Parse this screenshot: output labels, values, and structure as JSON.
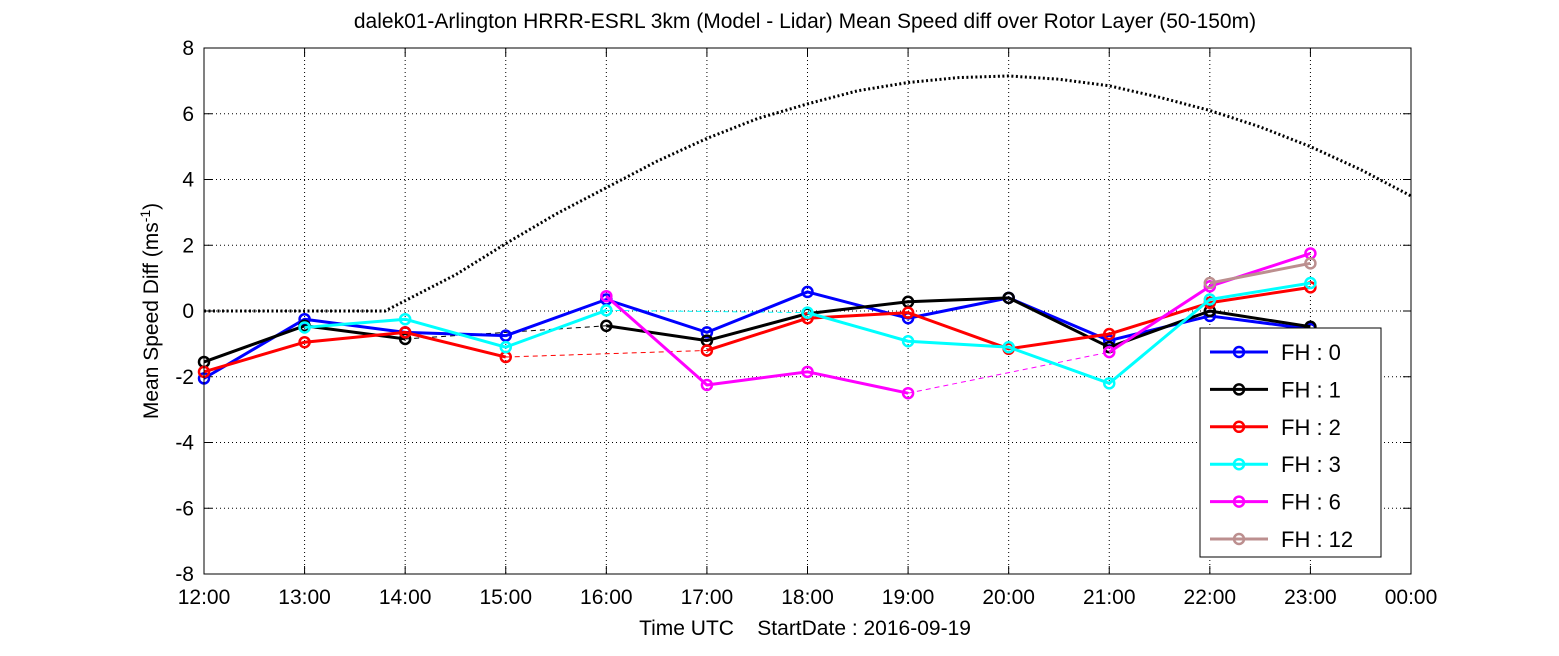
{
  "chart_data": {
    "type": "line",
    "title": "dalek01-Arlington HRRR-ESRL 3km (Model - Lidar) Mean Speed diff over Rotor Layer (50-150m)",
    "xlabel_left": "Time UTC",
    "xlabel_right": "StartDate : 2016-09-19",
    "ylabel_main": "Mean Speed Diff (ms",
    "ylabel_sup": "-1",
    "ylabel_end": ")",
    "ylim": [
      -8,
      8
    ],
    "yticks": [
      -8,
      -6,
      -4,
      -2,
      0,
      2,
      4,
      6,
      8
    ],
    "xlim": [
      12,
      24
    ],
    "xticks": [
      12,
      13,
      14,
      15,
      16,
      17,
      18,
      19,
      20,
      21,
      22,
      23,
      24
    ],
    "xtick_labels": [
      "12:00",
      "13:00",
      "14:00",
      "15:00",
      "16:00",
      "17:00",
      "18:00",
      "19:00",
      "20:00",
      "21:00",
      "22:00",
      "23:00",
      "00:00"
    ],
    "grid": true,
    "legend_position": "bottom-right",
    "series": [
      {
        "name": "FH : 0",
        "color": "#0000ff",
        "points": [
          [
            12,
            -2.05
          ],
          [
            13,
            -0.25
          ],
          [
            14,
            -0.65
          ],
          [
            15,
            -0.75
          ],
          [
            16,
            0.35
          ],
          [
            17,
            -0.65
          ],
          [
            18,
            0.58
          ],
          [
            19,
            -0.22
          ],
          [
            20,
            0.4
          ],
          [
            21,
            -0.9
          ],
          [
            22,
            -0.15
          ],
          [
            23,
            -0.55
          ]
        ]
      },
      {
        "name": "FH : 1",
        "color": "#000000",
        "points": [
          [
            12,
            -1.55
          ],
          [
            13,
            -0.45
          ],
          [
            14,
            -0.85
          ],
          [
            16,
            -0.45
          ],
          [
            17,
            -0.9
          ],
          [
            18,
            -0.08
          ],
          [
            19,
            0.28
          ],
          [
            20,
            0.4
          ],
          [
            21,
            -1.1
          ],
          [
            22,
            0.0
          ],
          [
            23,
            -0.48
          ]
        ]
      },
      {
        "name": "FH : 2",
        "color": "#ff0000",
        "points": [
          [
            12,
            -1.85
          ],
          [
            13,
            -0.95
          ],
          [
            14,
            -0.65
          ],
          [
            15,
            -1.4
          ],
          [
            17,
            -1.2
          ],
          [
            18,
            -0.22
          ],
          [
            19,
            -0.05
          ],
          [
            20,
            -1.15
          ],
          [
            21,
            -0.7
          ],
          [
            22,
            0.25
          ],
          [
            23,
            0.72
          ]
        ]
      },
      {
        "name": "FH : 3",
        "color": "#00ffff",
        "points": [
          [
            13,
            -0.5
          ],
          [
            14,
            -0.25
          ],
          [
            15,
            -1.1
          ],
          [
            16,
            0.02
          ],
          [
            18,
            -0.05
          ],
          [
            19,
            -0.92
          ],
          [
            20,
            -1.1
          ],
          [
            21,
            -2.2
          ],
          [
            22,
            0.35
          ],
          [
            23,
            0.85
          ]
        ]
      },
      {
        "name": "FH : 6",
        "color": "#ff00ff",
        "points": [
          [
            16,
            0.45
          ],
          [
            17,
            -2.25
          ],
          [
            18,
            -1.85
          ],
          [
            19,
            -2.5
          ],
          [
            21,
            -1.25
          ],
          [
            22,
            0.75
          ],
          [
            23,
            1.75
          ]
        ]
      },
      {
        "name": "FH : 12",
        "color": "#bc8f8f",
        "points": [
          [
            22,
            0.85
          ],
          [
            23,
            1.45
          ]
        ]
      }
    ],
    "reference_curve": {
      "color": "#000000",
      "points": [
        [
          12,
          0
        ],
        [
          13,
          0
        ],
        [
          13.8,
          0
        ],
        [
          14.5,
          1.1
        ],
        [
          15,
          2.05
        ],
        [
          15.5,
          2.95
        ],
        [
          16,
          3.75
        ],
        [
          16.5,
          4.55
        ],
        [
          17,
          5.25
        ],
        [
          17.5,
          5.85
        ],
        [
          18,
          6.3
        ],
        [
          18.5,
          6.7
        ],
        [
          19,
          6.95
        ],
        [
          19.5,
          7.1
        ],
        [
          20,
          7.15
        ],
        [
          20.5,
          7.05
        ],
        [
          21,
          6.85
        ],
        [
          21.5,
          6.5
        ],
        [
          22,
          6.1
        ],
        [
          22.5,
          5.6
        ],
        [
          23,
          5.0
        ],
        [
          23.5,
          4.3
        ],
        [
          24,
          3.5
        ]
      ]
    }
  }
}
